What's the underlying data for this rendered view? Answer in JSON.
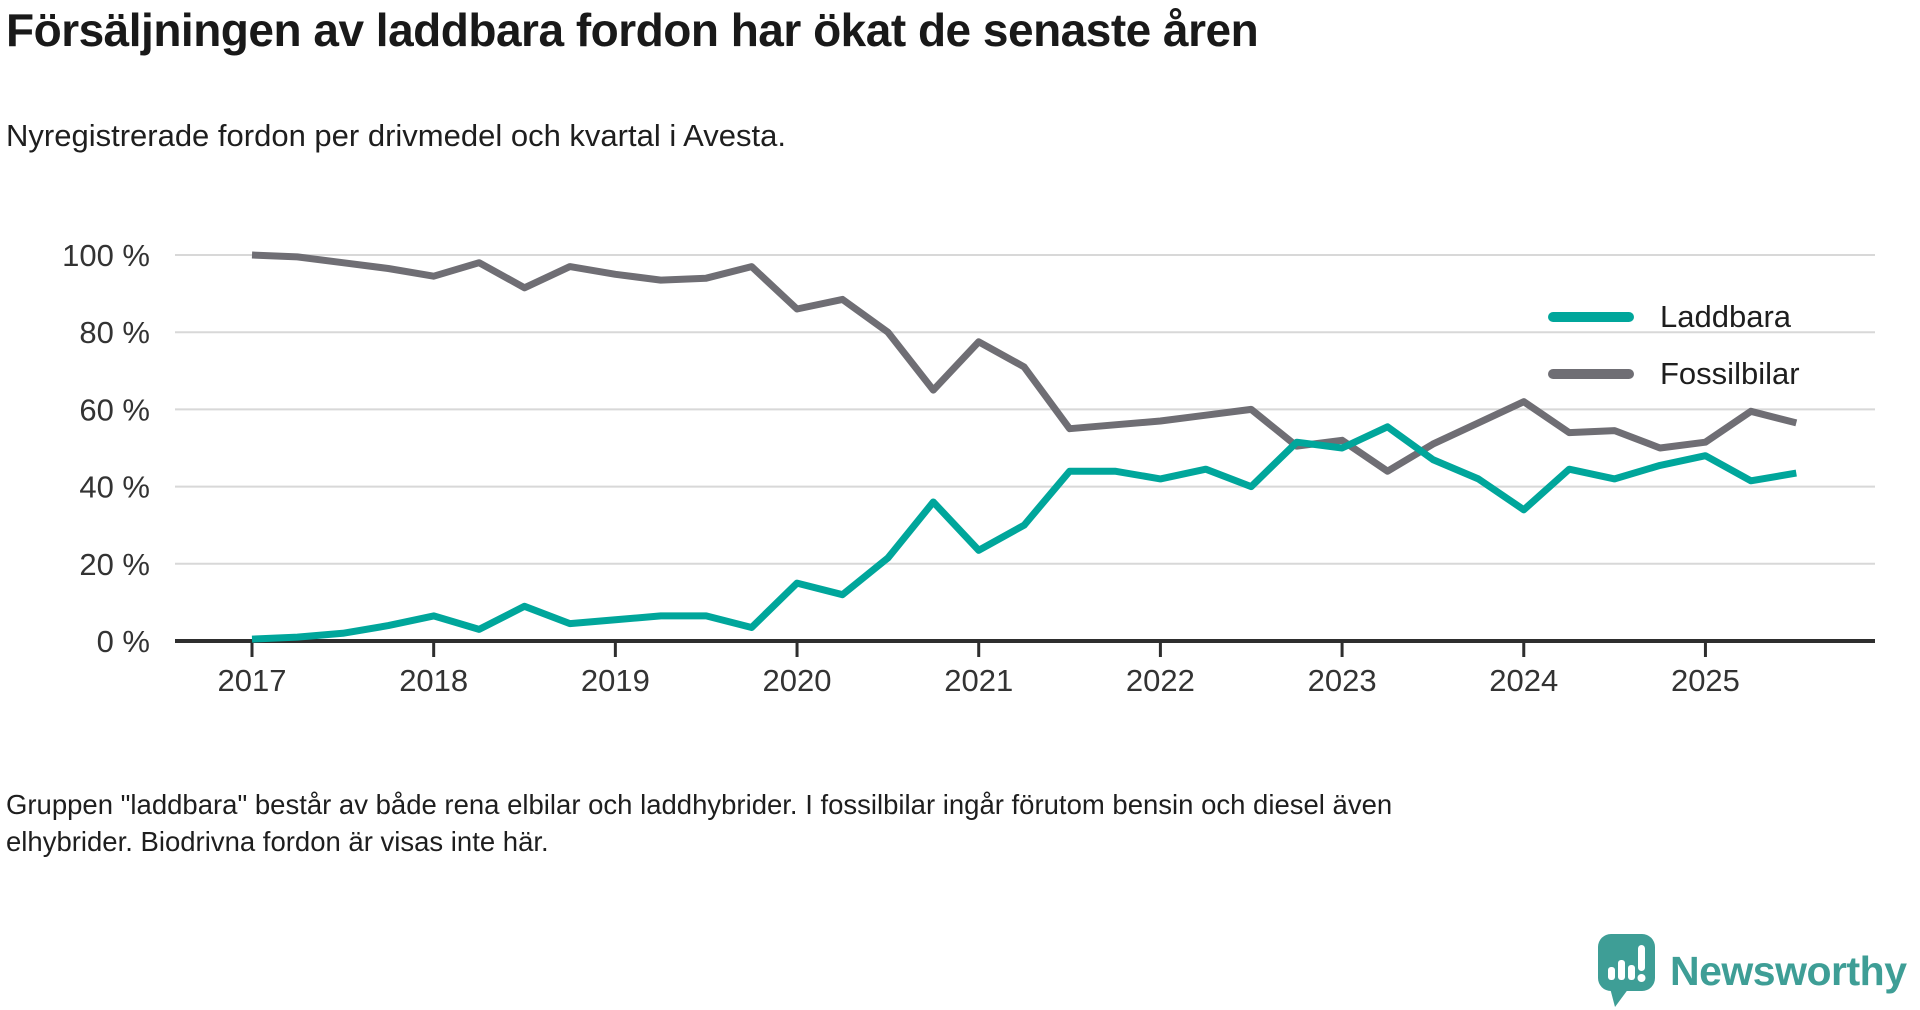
{
  "header": {
    "title": "Försäljningen av laddbara fordon har ökat de senaste åren",
    "subtitle": "Nyregistrerade fordon per drivmedel och kvartal i Avesta."
  },
  "legend": [
    {
      "label": "Laddbara",
      "color": "#00a69b"
    },
    {
      "label": "Fossilbilar",
      "color": "#6f6e74"
    }
  ],
  "footer": {
    "note_line1": "Gruppen \"laddbara\" består av både rena elbilar och laddhybrider. I fossilbilar ingår förutom bensin och diesel även",
    "note_line2": "elhybrider. Biodrivna fordon är visas inte här."
  },
  "branding": {
    "logo_text": "Newsworthy",
    "logo_color": "#3e9e96",
    "logo_icon": "speech-bubble-bar-chart"
  },
  "chart_data": {
    "type": "line",
    "title": "Försäljningen av laddbara fordon har ökat de senaste åren",
    "subtitle": "Nyregistrerade fordon per drivmedel och kvartal i Avesta.",
    "unit": "%",
    "x": [
      "2017 Q1",
      "2017 Q2",
      "2017 Q3",
      "2017 Q4",
      "2018 Q1",
      "2018 Q2",
      "2018 Q3",
      "2018 Q4",
      "2019 Q1",
      "2019 Q2",
      "2019 Q3",
      "2019 Q4",
      "2020 Q1",
      "2020 Q2",
      "2020 Q3",
      "2020 Q4",
      "2021 Q1",
      "2021 Q2",
      "2021 Q3",
      "2021 Q4",
      "2022 Q1",
      "2022 Q2",
      "2022 Q3",
      "2022 Q4",
      "2023 Q1",
      "2023 Q2",
      "2023 Q3",
      "2023 Q4",
      "2024 Q1",
      "2024 Q2",
      "2024 Q3",
      "2024 Q4",
      "2025 Q1",
      "2025 Q2",
      "2025 Q3"
    ],
    "series": [
      {
        "name": "Laddbara",
        "color": "#00a69b",
        "values": [
          0.5,
          1,
          2,
          4,
          6.5,
          3,
          9,
          4.5,
          5.5,
          6.5,
          6.5,
          3.5,
          15,
          12,
          21.5,
          36,
          23.5,
          30,
          44,
          44,
          42,
          44.5,
          40,
          51.5,
          50,
          55.5,
          47,
          42,
          34,
          44.5,
          42,
          45.5,
          48,
          41.5,
          43.5
        ]
      },
      {
        "name": "Fossilbilar",
        "color": "#6f6e74",
        "values": [
          100,
          99.5,
          98,
          96.5,
          94.5,
          98,
          91.5,
          97,
          95,
          93.5,
          94,
          97,
          86,
          88.5,
          80,
          65,
          77.5,
          71,
          55,
          56,
          57,
          58.5,
          60,
          50.5,
          52,
          44,
          51,
          56.5,
          62,
          54,
          54.5,
          50,
          51.5,
          59.5,
          56.5
        ]
      }
    ],
    "yticks": [
      {
        "value": 0,
        "label": "0 %"
      },
      {
        "value": 20,
        "label": "20 %"
      },
      {
        "value": 40,
        "label": "40 %"
      },
      {
        "value": 60,
        "label": "60 %"
      },
      {
        "value": 80,
        "label": "80 %"
      },
      {
        "value": 100,
        "label": "100 %"
      }
    ],
    "xticks": [
      {
        "index": 0,
        "label": "2017"
      },
      {
        "index": 4,
        "label": "2018"
      },
      {
        "index": 8,
        "label": "2019"
      },
      {
        "index": 12,
        "label": "2020"
      },
      {
        "index": 16,
        "label": "2021"
      },
      {
        "index": 20,
        "label": "2022"
      },
      {
        "index": 24,
        "label": "2023"
      },
      {
        "index": 28,
        "label": "2024"
      },
      {
        "index": 32,
        "label": "2025"
      }
    ],
    "ylim": [
      0,
      100
    ],
    "grid": true,
    "legend_position": "top-right"
  }
}
